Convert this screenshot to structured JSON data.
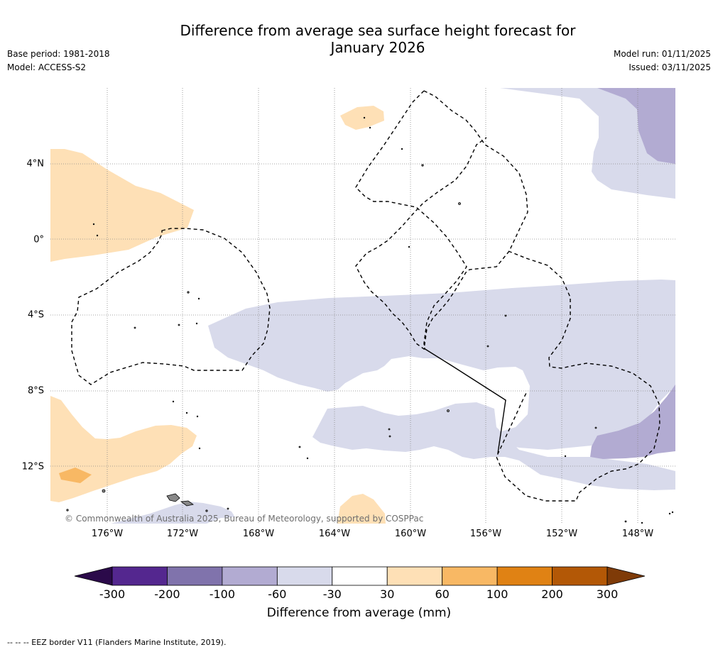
{
  "title": {
    "line1": "Difference from average sea surface height forecast for",
    "line2": "January 2026"
  },
  "meta": {
    "base_period": "Base period: 1981-2018",
    "model": "Model: ACCESS-S2",
    "model_run": "Model run: 01/11/2025",
    "issued": "Issued: 03/11/2025"
  },
  "map": {
    "lon_labels": [
      "176°W",
      "172°W",
      "168°W",
      "164°W",
      "160°W",
      "156°W",
      "152°W",
      "148°W"
    ],
    "lat_labels": [
      "4°N",
      "0°",
      "4°S",
      "8°S",
      "12°S"
    ],
    "copyright": "© Commonwealth of Australia 2025, Bureau of Meteorology, supported by COSPPac"
  },
  "colorbar": {
    "ticks": [
      "-300",
      "-200",
      "-100",
      "-60",
      "-30",
      "30",
      "60",
      "100",
      "200",
      "300"
    ],
    "colors": [
      "#2b0a4a",
      "#54278f",
      "#8073ac",
      "#b2abd2",
      "#d8daeb",
      "#ffffff",
      "#fee0b6",
      "#f8b864",
      "#e08214",
      "#b35806",
      "#7f3b08"
    ],
    "label": "Difference from average (mm)"
  },
  "footnote": "--  --  -- EEZ border V11 (Flanders Marine Institute, 2019)."
}
